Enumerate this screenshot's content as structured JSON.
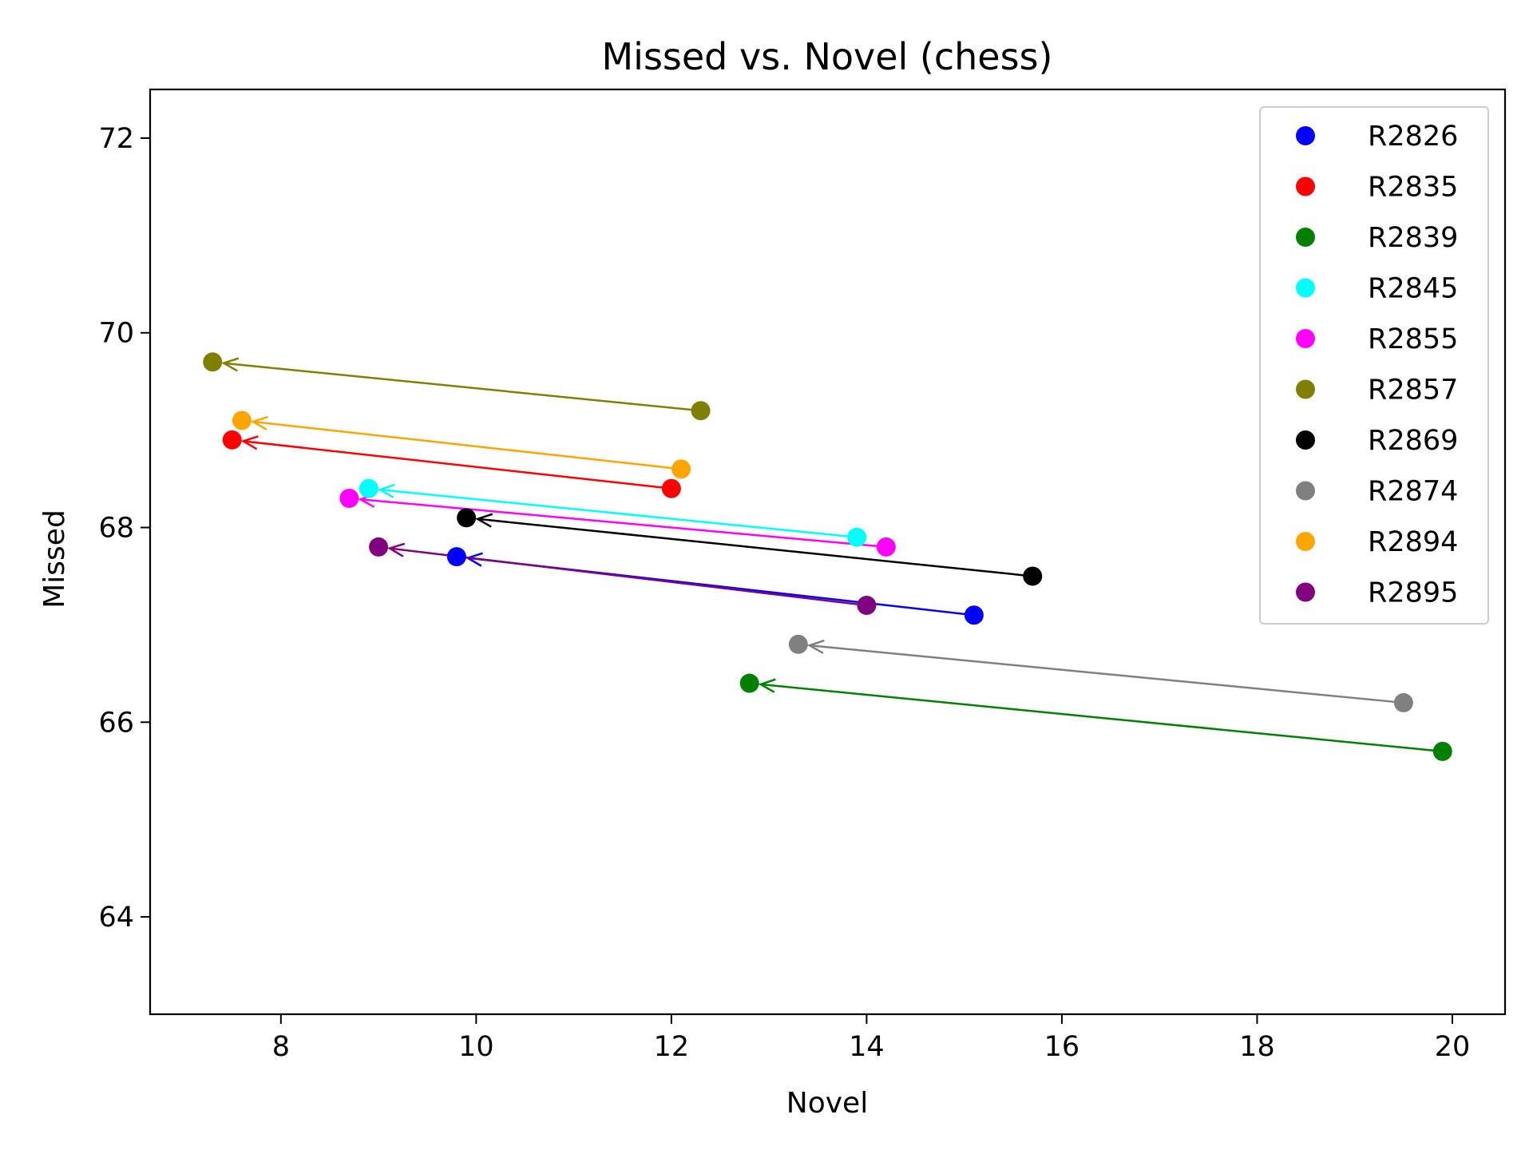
{
  "chart_data": {
    "type": "scatter",
    "title": "Missed vs. Novel (chess)",
    "xlabel": "Novel",
    "ylabel": "Missed",
    "xlim": [
      6.66,
      20.54
    ],
    "ylim": [
      63.0,
      72.5
    ],
    "xticks": [
      8,
      10,
      12,
      14,
      16,
      18,
      20
    ],
    "yticks": [
      64,
      66,
      68,
      70,
      72
    ],
    "grid": false,
    "legend_position": "upper-right",
    "arrows": "from start point to end point",
    "series": [
      {
        "name": "R2826",
        "color": "#0000ff",
        "start": {
          "x": 15.1,
          "y": 67.1
        },
        "end": {
          "x": 9.8,
          "y": 67.7
        }
      },
      {
        "name": "R2835",
        "color": "#ff0000",
        "start": {
          "x": 12.0,
          "y": 68.4
        },
        "end": {
          "x": 7.5,
          "y": 68.9
        }
      },
      {
        "name": "R2839",
        "color": "#008000",
        "start": {
          "x": 19.9,
          "y": 65.7
        },
        "end": {
          "x": 12.8,
          "y": 66.4
        }
      },
      {
        "name": "R2845",
        "color": "#00ffff",
        "start": {
          "x": 13.9,
          "y": 67.9
        },
        "end": {
          "x": 8.9,
          "y": 68.4
        }
      },
      {
        "name": "R2855",
        "color": "#ff00ff",
        "start": {
          "x": 14.2,
          "y": 67.8
        },
        "end": {
          "x": 8.7,
          "y": 68.3
        }
      },
      {
        "name": "R2857",
        "color": "#808000",
        "start": {
          "x": 12.3,
          "y": 69.2
        },
        "end": {
          "x": 7.3,
          "y": 69.7
        }
      },
      {
        "name": "R2869",
        "color": "#000000",
        "start": {
          "x": 15.7,
          "y": 67.5
        },
        "end": {
          "x": 9.9,
          "y": 68.1
        }
      },
      {
        "name": "R2874",
        "color": "#808080",
        "start": {
          "x": 19.5,
          "y": 66.2
        },
        "end": {
          "x": 13.3,
          "y": 66.8
        }
      },
      {
        "name": "R2894",
        "color": "#ffa500",
        "start": {
          "x": 12.1,
          "y": 68.6
        },
        "end": {
          "x": 7.6,
          "y": 69.1
        }
      },
      {
        "name": "R2895",
        "color": "#800080",
        "start": {
          "x": 14.0,
          "y": 67.2
        },
        "end": {
          "x": 9.0,
          "y": 67.8
        }
      }
    ]
  }
}
